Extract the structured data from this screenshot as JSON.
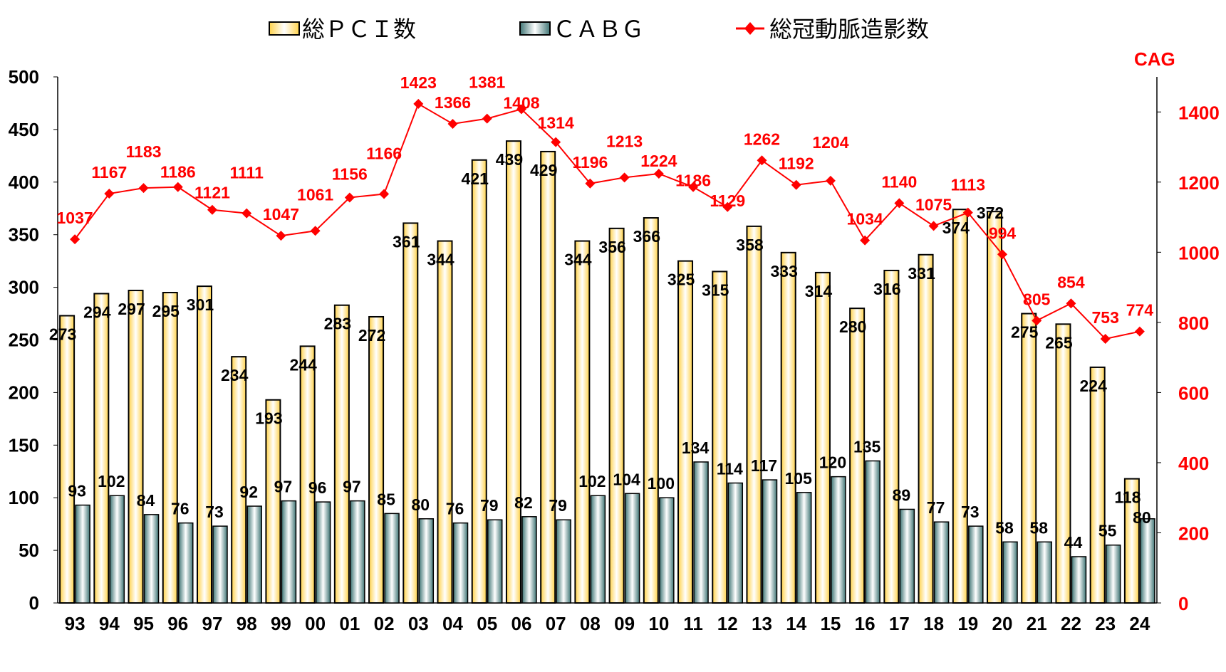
{
  "chart_data": {
    "type": "bar",
    "categories": [
      "93",
      "94",
      "95",
      "96",
      "97",
      "98",
      "99",
      "00",
      "01",
      "02",
      "03",
      "04",
      "05",
      "06",
      "07",
      "08",
      "09",
      "10",
      "11",
      "12",
      "13",
      "14",
      "15",
      "16",
      "17",
      "18",
      "19",
      "20",
      "21",
      "22",
      "23",
      "24"
    ],
    "series": [
      {
        "name": "総ＰＣＩ数",
        "type": "bar",
        "axis": "left",
        "color": "#FFD24A",
        "values": [
          273,
          294,
          297,
          295,
          301,
          234,
          193,
          244,
          283,
          272,
          361,
          344,
          421,
          439,
          429,
          344,
          356,
          366,
          325,
          315,
          358,
          333,
          314,
          280,
          316,
          331,
          374,
          372,
          275,
          265,
          224,
          118
        ]
      },
      {
        "name": "ＣＡＢＧ",
        "type": "bar",
        "axis": "left",
        "color": "#3F7575",
        "values": [
          93,
          102,
          84,
          76,
          73,
          92,
          97,
          96,
          97,
          85,
          80,
          76,
          79,
          82,
          79,
          102,
          104,
          100,
          134,
          114,
          117,
          105,
          120,
          135,
          89,
          77,
          73,
          58,
          58,
          44,
          55,
          80
        ]
      },
      {
        "name": "総冠動脈造影数",
        "type": "line",
        "axis": "right",
        "color": "#FF0000",
        "values": [
          1037,
          1167,
          1183,
          1186,
          1121,
          1111,
          1047,
          1061,
          1156,
          1166,
          1423,
          1366,
          1381,
          1408,
          1314,
          1196,
          1213,
          1224,
          1186,
          1129,
          1262,
          1192,
          1204,
          1034,
          1140,
          1075,
          1113,
          994,
          805,
          854,
          753,
          774
        ]
      }
    ],
    "left_axis": {
      "ylim": [
        0,
        500
      ],
      "ticks": [
        "0",
        "50",
        "100",
        "150",
        "200",
        "250",
        "300",
        "350",
        "400",
        "450",
        "500"
      ]
    },
    "right_axis": {
      "label": "CAG",
      "ylim": [
        0,
        1500
      ],
      "ticks": [
        "0",
        "200",
        "400",
        "600",
        "800",
        "1000",
        "1200",
        "1400"
      ],
      "color": "#FF0000"
    },
    "legend": "top",
    "grid": false
  }
}
